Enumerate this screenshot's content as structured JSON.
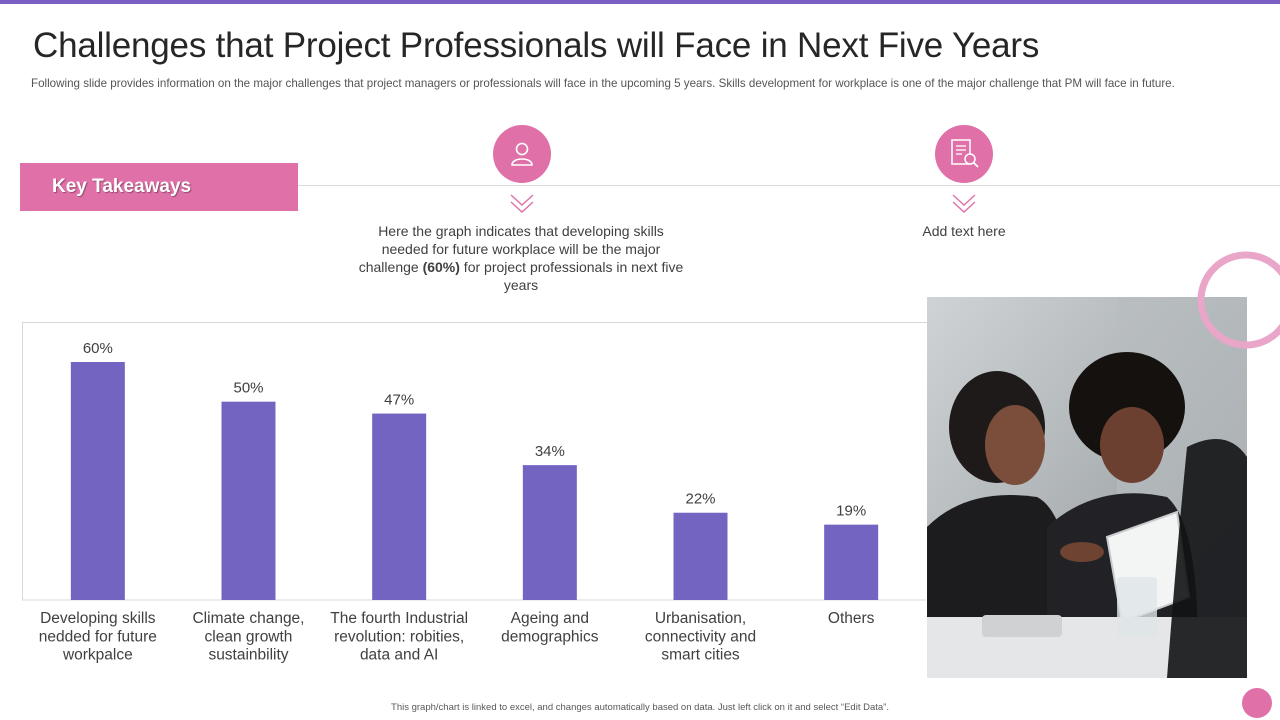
{
  "page": {
    "title": "Challenges that Project Professionals will Face in Next Five Years",
    "subtitle": "Following slide provides information on the major challenges that project managers or professionals will face in the upcoming 5 years. Skills development for workplace is one of the major challenge that PM will face in future.",
    "key_takeaways_label": "Key Takeaways",
    "footnote": "This graph/chart is linked to excel, and changes automatically based on data. Just left click on it and select “Edit Data”."
  },
  "takeaways": [
    {
      "icon": "user-icon",
      "text_before": "Here the graph indicates that developing skills needed for future workplace will be the major challenge ",
      "highlight": "(60%)",
      "text_after": " for project professionals in next five years"
    },
    {
      "icon": "document-search-icon",
      "text": "Add text here"
    }
  ],
  "colors": {
    "accent_pink": "#e070a8",
    "bar_purple": "#7464c2",
    "top_bar_purple": "#7b5fc4"
  },
  "chart_data": {
    "type": "bar",
    "categories": [
      "Developing skills nedded for future workpalce",
      "Climate change, clean growth sustainbility",
      "The fourth Industrial revolution: robities, data and AI",
      "Ageing and demographics",
      "Urbanisation, connectivity and smart cities",
      "Others"
    ],
    "category_lines": [
      [
        "Developing skills",
        "nedded for future",
        "workpalce"
      ],
      [
        "Climate change,",
        "clean growth",
        "sustainbility"
      ],
      [
        "The fourth Industrial",
        "revolution: robities,",
        "data and AI"
      ],
      [
        "Ageing and",
        "demographics"
      ],
      [
        "Urbanisation,",
        "connectivity and",
        "smart cities"
      ],
      [
        "Others"
      ]
    ],
    "values": [
      60,
      50,
      47,
      34,
      22,
      19
    ],
    "value_labels": [
      "60%",
      "50%",
      "47%",
      "34%",
      "22%",
      "19%"
    ],
    "ylim": [
      0,
      65
    ],
    "grid": false,
    "legend": "none"
  }
}
